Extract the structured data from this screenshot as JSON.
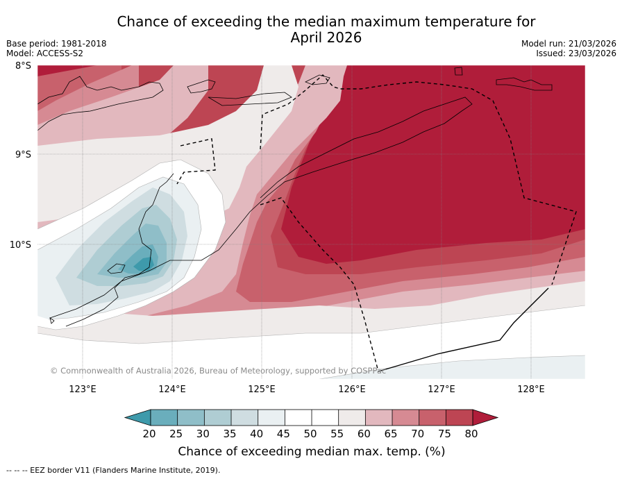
{
  "title_line1": "Chance of exceeding the median maximum temperature for",
  "title_line2": "April 2026",
  "base_period": "Base period: 1981-2018",
  "model": "Model: ACCESS-S2",
  "model_run": "Model run: 21/03/2026",
  "issued": "Issued: 23/03/2026",
  "copyright": "© Commonwealth of Australia 2026, Bureau of Meteorology, supported by COSPPac",
  "footer": "--  --  -- EEZ border V11 (Flanders Marine Institute, 2019).",
  "lat_labels": [
    "8°S",
    "9°S",
    "10°S"
  ],
  "lon_labels": [
    "123°E",
    "124°E",
    "125°E",
    "126°E",
    "127°E",
    "128°E"
  ],
  "colorbar": {
    "title": "Chance of exceeding median max. temp. (%)",
    "ticks": [
      "20",
      "25",
      "30",
      "35",
      "40",
      "45",
      "50",
      "55",
      "60",
      "65",
      "70",
      "75",
      "80"
    ],
    "colors": [
      "#3e9aab",
      "#6aaebc",
      "#8fbec8",
      "#afcdd3",
      "#cfdde1",
      "#eaf0f2",
      "#ffffff",
      "#ffffff",
      "#efebea",
      "#e2b8be",
      "#d68a93",
      "#c8616c",
      "#bd4553",
      "#b01d3a"
    ]
  }
}
